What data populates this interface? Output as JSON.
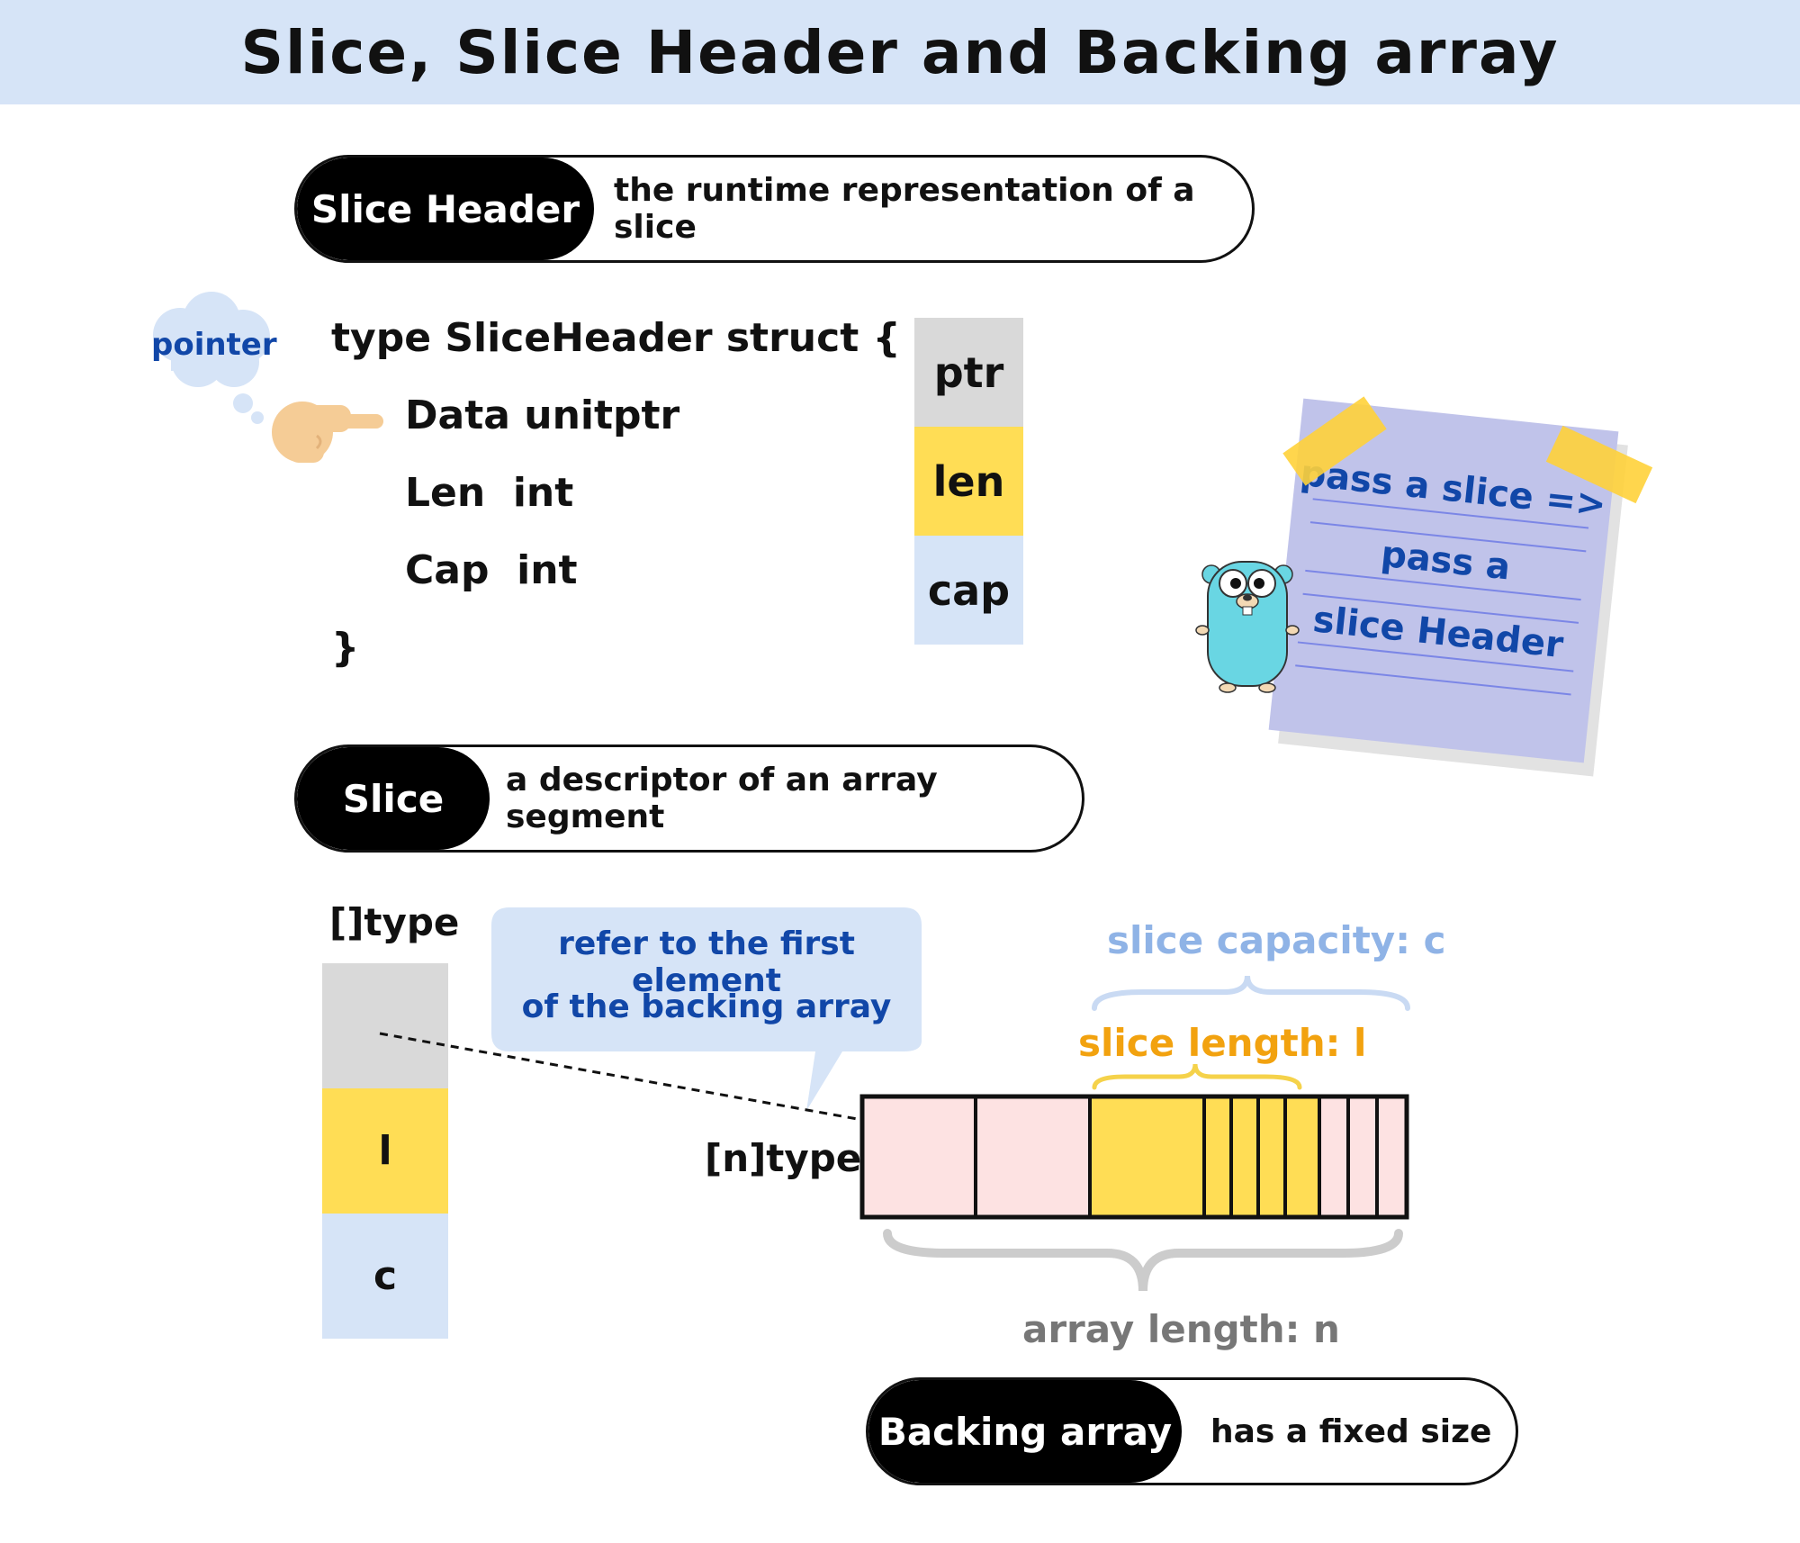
{
  "title": "Slice, Slice Header and Backing array",
  "slice_header_pill": {
    "label": "Slice Header",
    "description": "the runtime representation of a slice"
  },
  "code": {
    "line1": "type SliceHeader struct {",
    "line2": "Data unitptr",
    "line3": "Len  int",
    "line4": "Cap  int",
    "line5": "}"
  },
  "pointer_bubble": "pointer",
  "header_cells": [
    "ptr",
    "len",
    "cap"
  ],
  "note": {
    "line1": "pass a slice =>",
    "line2": "pass a",
    "line3": "slice Header"
  },
  "slice_pill": {
    "label": "Slice",
    "description": "a descriptor of an array segment"
  },
  "slice_type_label": "[]type",
  "slice_cells": [
    "",
    "l",
    "c"
  ],
  "callout": {
    "line1": "refer to the first element",
    "line2": "of the backing array"
  },
  "array_type_label": "[n]type",
  "capacity_label": "slice capacity: c",
  "length_label": "slice length: l",
  "array_length_label": "array length: n",
  "backing_pill": {
    "label": "Backing array",
    "description": "has a fixed size"
  },
  "colors": {
    "title_band": "#d6e4f7",
    "ptr_cell": "#d9d9d9",
    "len_cell": "#ffdd55",
    "cap_cell": "#d6e4f7",
    "array_cell": "#fde2e2",
    "capacity_brace": "#c9daf3",
    "length_brace": "#f5d24a",
    "array_brace": "#cccccc",
    "blue_text": "#1147a8",
    "capacity_text": "#8fb3e6",
    "length_text": "#f2a20f",
    "array_length_text": "#777777",
    "note_paper": "#c0c3ea",
    "tape": "#ffd23a",
    "gopher": "#69d6e3"
  }
}
